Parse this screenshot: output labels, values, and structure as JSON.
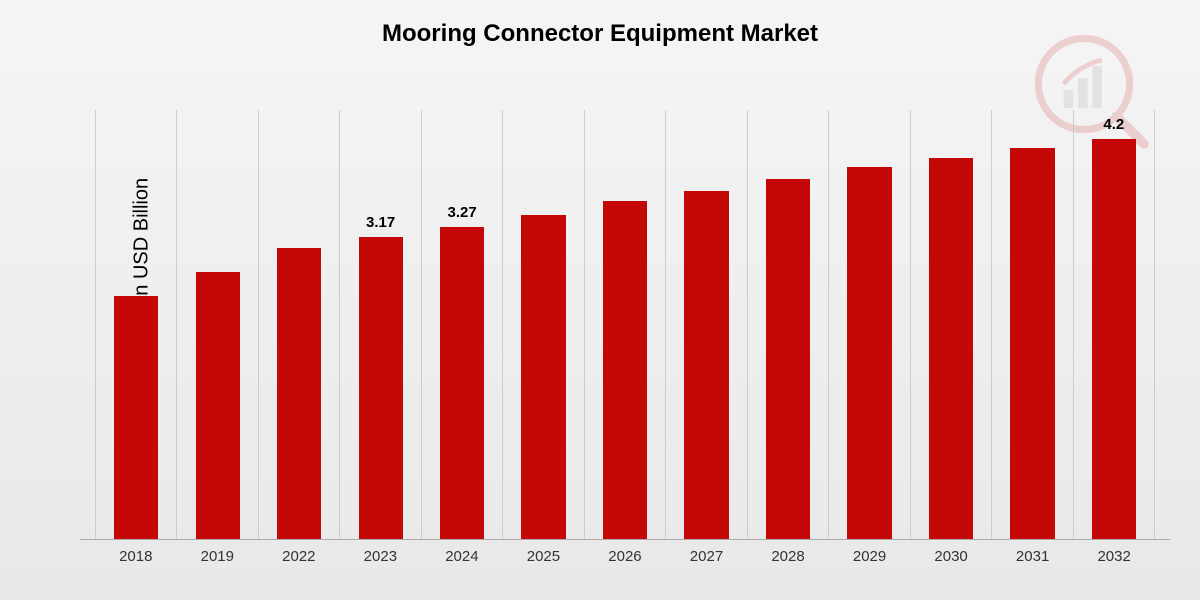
{
  "chart": {
    "type": "bar",
    "title": "Mooring Connector Equipment Market",
    "title_fontsize": 24,
    "ylabel": "Market Value in USD Billion",
    "ylabel_fontsize": 20,
    "categories": [
      "2018",
      "2019",
      "2022",
      "2023",
      "2024",
      "2025",
      "2026",
      "2027",
      "2028",
      "2029",
      "2030",
      "2031",
      "2032"
    ],
    "values": [
      2.55,
      2.8,
      3.05,
      3.17,
      3.27,
      3.4,
      3.55,
      3.65,
      3.78,
      3.9,
      4.0,
      4.1,
      4.2
    ],
    "visible_value_labels": {
      "3": "3.17",
      "4": "3.27",
      "12": "4.2"
    },
    "bar_color": "#c40808",
    "ylim": [
      0,
      4.5
    ],
    "background_gradient": [
      "#f5f5f5",
      "#e8e8e8"
    ],
    "grid_color": "#cccccc",
    "axis_color": "#aaaaaa",
    "bar_width_pct": 55,
    "category_fontsize": 15,
    "value_label_fontsize": 15,
    "watermark": {
      "icon": "bar-chart-magnifier",
      "color": "#c40808",
      "opacity": 0.15
    }
  }
}
